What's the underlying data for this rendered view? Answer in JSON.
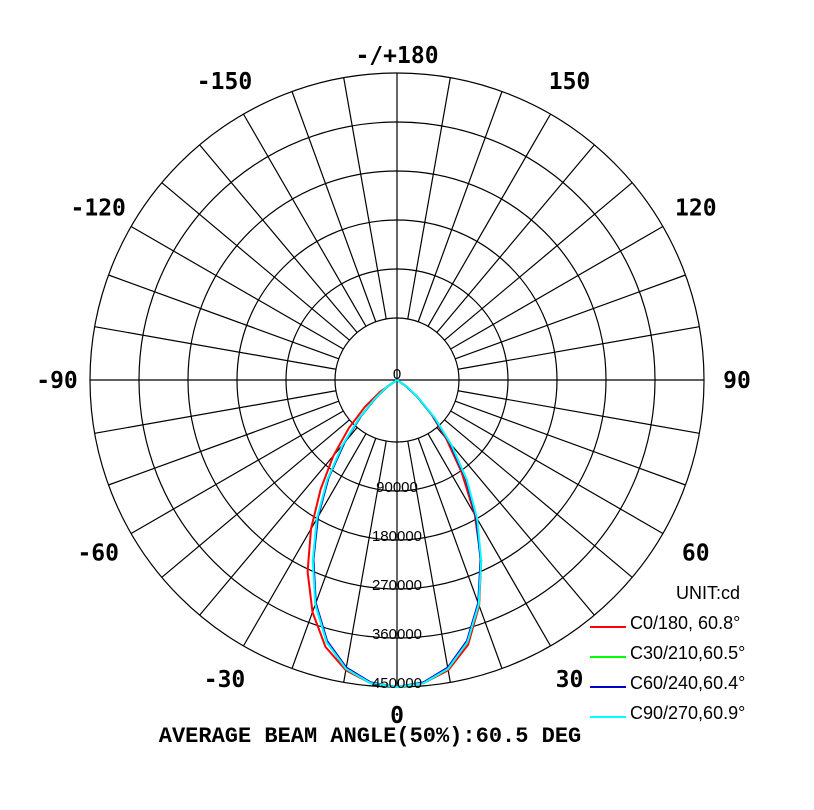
{
  "chart_data": {
    "type": "polar",
    "title": "",
    "unit_label": "UNIT:cd",
    "footer": "AVERAGE BEAM ANGLE(50%):60.5 DEG",
    "angle_labels": [
      {
        "angle": 0,
        "text": "0"
      },
      {
        "angle": 30,
        "text": "30"
      },
      {
        "angle": 60,
        "text": "60"
      },
      {
        "angle": 90,
        "text": "90"
      },
      {
        "angle": 120,
        "text": "120"
      },
      {
        "angle": 150,
        "text": "150"
      },
      {
        "angle": 180,
        "text": "-/+180"
      },
      {
        "angle": -150,
        "text": "-150"
      },
      {
        "angle": -120,
        "text": "-120"
      },
      {
        "angle": -90,
        "text": "-90"
      },
      {
        "angle": -60,
        "text": "-60"
      },
      {
        "angle": -30,
        "text": "-30"
      }
    ],
    "radial_ticks": [
      0,
      90000,
      180000,
      270000,
      360000,
      450000
    ],
    "radial_tick_labels": [
      "0",
      "90000",
      "180000",
      "270000",
      "360000",
      "450000"
    ],
    "r_max": 450000,
    "angle_grid_step_deg": 10,
    "series": [
      {
        "name": "C0/180, 60.8°",
        "color": "#ff0000",
        "angles": [
          -60,
          -55,
          -50,
          -45,
          -40,
          -35,
          -30,
          -25,
          -20,
          -15,
          -10,
          -5,
          0,
          5,
          10,
          15,
          20,
          25,
          30,
          35,
          40,
          45,
          50,
          55,
          60
        ],
        "values": [
          0,
          30000,
          62000,
          100000,
          145000,
          195000,
          252000,
          310000,
          362000,
          405000,
          432000,
          446000,
          450000,
          446000,
          432000,
          402000,
          352000,
          292000,
          228000,
          165000,
          112000,
          72000,
          40000,
          17000,
          0
        ]
      },
      {
        "name": "C30/210,60.5°",
        "color": "#00ff00",
        "angles": [
          -60,
          -55,
          -50,
          -45,
          -40,
          -35,
          -30,
          -25,
          -20,
          -15,
          -10,
          -5,
          0,
          5,
          10,
          15,
          20,
          25,
          30,
          35,
          40,
          45,
          50,
          55,
          60
        ],
        "values": [
          0,
          18000,
          40000,
          75000,
          120000,
          175000,
          232000,
          290000,
          350000,
          398000,
          430000,
          446000,
          450000,
          446000,
          430000,
          398000,
          350000,
          290000,
          232000,
          175000,
          120000,
          75000,
          40000,
          18000,
          0
        ]
      },
      {
        "name": "C60/240,60.4°",
        "color": "#0000cc",
        "angles": [
          -60,
          -55,
          -50,
          -45,
          -40,
          -35,
          -30,
          -25,
          -20,
          -15,
          -10,
          -5,
          0,
          5,
          10,
          15,
          20,
          25,
          30,
          35,
          40,
          45,
          50,
          55,
          60
        ],
        "values": [
          0,
          18000,
          40000,
          75000,
          120000,
          175000,
          232000,
          290000,
          348000,
          396000,
          428000,
          445000,
          450000,
          445000,
          428000,
          396000,
          348000,
          290000,
          232000,
          175000,
          120000,
          75000,
          40000,
          18000,
          0
        ]
      },
      {
        "name": "C90/270,60.9°",
        "color": "#00ffff",
        "angles": [
          -60,
          -55,
          -50,
          -45,
          -40,
          -35,
          -30,
          -25,
          -20,
          -15,
          -10,
          -5,
          0,
          5,
          10,
          15,
          20,
          25,
          30,
          35,
          40,
          45,
          50,
          55,
          60
        ],
        "values": [
          0,
          20000,
          42000,
          78000,
          124000,
          178000,
          235000,
          292000,
          350000,
          398000,
          430000,
          446000,
          450000,
          446000,
          430000,
          398000,
          350000,
          292000,
          235000,
          178000,
          124000,
          78000,
          42000,
          20000,
          0
        ]
      }
    ],
    "legend_position": "bottom-right",
    "grid": true
  }
}
